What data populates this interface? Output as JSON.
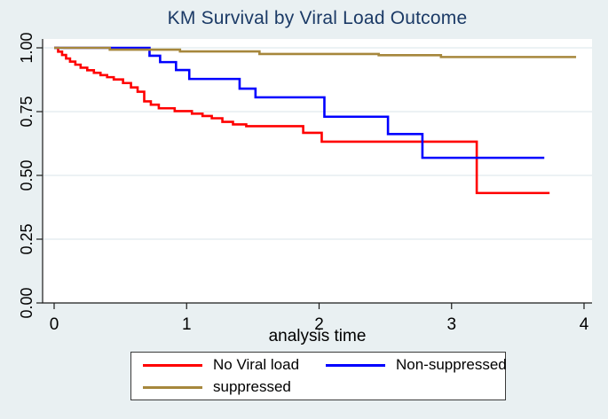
{
  "figure": {
    "background_color": "#e9f0f2",
    "title_color": "#1b3a66"
  },
  "chart_data": {
    "type": "line",
    "subtype": "kaplan-meier-step",
    "title": "KM Survival by Viral Load Outcome",
    "xlabel": "analysis time",
    "ylabel": "",
    "xlim": [
      0,
      4
    ],
    "ylim": [
      0,
      1
    ],
    "grid": true,
    "legend_position": "bottom-boxed",
    "plot_bg": "#ffffff",
    "grid_color": "#e0eaee",
    "axis_color": "#1a1a1a",
    "xticks": [
      {
        "value": 0,
        "label": "0"
      },
      {
        "value": 1,
        "label": "1"
      },
      {
        "value": 2,
        "label": "2"
      },
      {
        "value": 3,
        "label": "3"
      },
      {
        "value": 4,
        "label": "4"
      }
    ],
    "yticks": [
      {
        "value": 0.0,
        "label": "0.00"
      },
      {
        "value": 0.25,
        "label": "0.25"
      },
      {
        "value": 0.5,
        "label": "0.50"
      },
      {
        "value": 0.75,
        "label": "0.75"
      },
      {
        "value": 1.0,
        "label": "1.00"
      }
    ],
    "series": [
      {
        "name": "No Viral load",
        "color": "#ff0000",
        "end": 3.74,
        "steps": [
          [
            0,
            1.0
          ],
          [
            0.03,
            0.985
          ],
          [
            0.06,
            0.972
          ],
          [
            0.09,
            0.958
          ],
          [
            0.12,
            0.946
          ],
          [
            0.16,
            0.934
          ],
          [
            0.2,
            0.922
          ],
          [
            0.25,
            0.912
          ],
          [
            0.3,
            0.902
          ],
          [
            0.35,
            0.893
          ],
          [
            0.4,
            0.885
          ],
          [
            0.45,
            0.876
          ],
          [
            0.52,
            0.862
          ],
          [
            0.58,
            0.845
          ],
          [
            0.63,
            0.828
          ],
          [
            0.68,
            0.79
          ],
          [
            0.73,
            0.777
          ],
          [
            0.79,
            0.763
          ],
          [
            0.91,
            0.752
          ],
          [
            1.04,
            0.742
          ],
          [
            1.12,
            0.733
          ],
          [
            1.19,
            0.724
          ],
          [
            1.27,
            0.71
          ],
          [
            1.35,
            0.7
          ],
          [
            1.45,
            0.693
          ],
          [
            1.88,
            0.667
          ],
          [
            2.02,
            0.632
          ],
          [
            3.19,
            0.431
          ]
        ]
      },
      {
        "name": "Non-suppressed",
        "color": "#0000ff",
        "end": 3.7,
        "steps": [
          [
            0,
            1.0
          ],
          [
            0.72,
            0.969
          ],
          [
            0.8,
            0.944
          ],
          [
            0.92,
            0.913
          ],
          [
            1.02,
            0.878
          ],
          [
            1.4,
            0.84
          ],
          [
            1.52,
            0.806
          ],
          [
            2.04,
            0.73
          ],
          [
            2.52,
            0.662
          ],
          [
            2.78,
            0.569
          ]
        ]
      },
      {
        "name": "suppressed",
        "color": "#a6873c",
        "end": 3.94,
        "steps": [
          [
            0,
            1.0
          ],
          [
            0.42,
            0.993
          ],
          [
            0.95,
            0.986
          ],
          [
            1.55,
            0.976
          ],
          [
            2.45,
            0.971
          ],
          [
            2.92,
            0.964
          ]
        ]
      }
    ]
  }
}
